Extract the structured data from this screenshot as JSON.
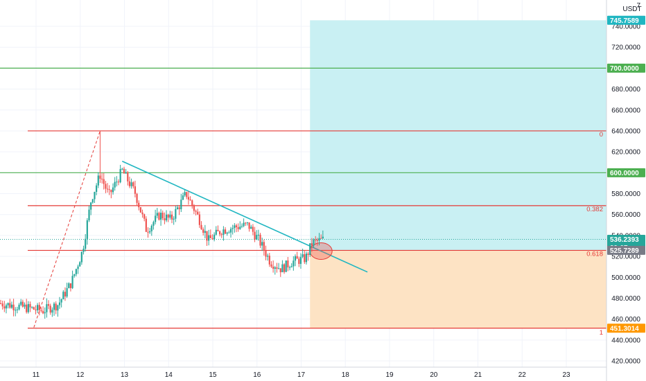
{
  "colors": {
    "up": "#26a69a",
    "down": "#ef5350",
    "red_line": "#e53935",
    "green_line": "#4caf50",
    "trendline": "#1fb6c1",
    "profit_zone": "#c9f0f3",
    "loss_zone": "#fde3c4",
    "grid": "#f0f3fa",
    "axis_text": "#131722",
    "current_price_badge": "#26a69a",
    "entry_badge": "#787b86",
    "loss_badge": "#ff9800",
    "green_badge": "#4caf50"
  },
  "price_axis": {
    "currency": "USDT",
    "ticks": [
      "7",
      "740.0000",
      "720.0000",
      "700.0000",
      "680.0000",
      "660.0000",
      "640.0000",
      "620.0000",
      "600.0000",
      "580.0000",
      "560.0000",
      "540.0000",
      "520.0000",
      "500.0000",
      "480.0000",
      "460.0000",
      "440.0000",
      "420.0000"
    ],
    "badges": {
      "target": "745.7589",
      "level_700": "700.0000",
      "level_600": "600.0000",
      "current_price": "536.2393",
      "countdown": "39:07",
      "entry": "525.7289",
      "stop": "451.3014"
    }
  },
  "time_axis": {
    "labels": [
      "11",
      "12",
      "13",
      "14",
      "15",
      "16",
      "17",
      "18",
      "19",
      "20",
      "21",
      "22",
      "23"
    ]
  },
  "fib_labels": {
    "level_0": "0",
    "level_0382": "0.382",
    "level_0618": "0.618",
    "level_1": "1"
  },
  "chart_data": {
    "type": "candlestick",
    "symbol_quote": "USDT",
    "ylim": [
      413,
      757
    ],
    "xlim_days": [
      10.2,
      24
    ],
    "horizontal_levels": [
      {
        "price": 700.0,
        "color": "green"
      },
      {
        "price": 600.0,
        "color": "green"
      },
      {
        "price": 640.0,
        "color": "red",
        "fib": "0"
      },
      {
        "price": 568.5,
        "color": "red",
        "fib": "0.382"
      },
      {
        "price": 525.7289,
        "color": "red",
        "fib": "0.618"
      },
      {
        "price": 451.3014,
        "color": "red",
        "fib": "1"
      }
    ],
    "trendline": {
      "start": {
        "day": 12.95,
        "price": 611
      },
      "end": {
        "day": 18.5,
        "price": 505
      }
    },
    "dashed_line": {
      "start": {
        "day": 10.95,
        "price": 452
      },
      "end": {
        "day": 12.45,
        "price": 640
      }
    },
    "position": {
      "start_day": 17.2,
      "entry": 525.7289,
      "target": 745.7589,
      "stop": 451.3014
    },
    "highlight_circle": {
      "day": 17.45,
      "price": 525
    },
    "candles_close_path": [
      {
        "day": 10.2,
        "price": 475
      },
      {
        "day": 10.9,
        "price": 470
      },
      {
        "day": 11.15,
        "price": 468
      },
      {
        "day": 11.5,
        "price": 474
      },
      {
        "day": 11.8,
        "price": 495
      },
      {
        "day": 12.05,
        "price": 525
      },
      {
        "day": 12.25,
        "price": 575
      },
      {
        "day": 12.45,
        "price": 598
      },
      {
        "day": 12.65,
        "price": 578
      },
      {
        "day": 12.95,
        "price": 602
      },
      {
        "day": 13.25,
        "price": 580
      },
      {
        "day": 13.5,
        "price": 545
      },
      {
        "day": 13.8,
        "price": 560
      },
      {
        "day": 14.05,
        "price": 555
      },
      {
        "day": 14.4,
        "price": 580
      },
      {
        "day": 14.7,
        "price": 555
      },
      {
        "day": 14.9,
        "price": 535
      },
      {
        "day": 15.2,
        "price": 545
      },
      {
        "day": 15.5,
        "price": 548
      },
      {
        "day": 15.8,
        "price": 550
      },
      {
        "day": 16.05,
        "price": 535
      },
      {
        "day": 16.3,
        "price": 515
      },
      {
        "day": 16.55,
        "price": 508
      },
      {
        "day": 16.8,
        "price": 515
      },
      {
        "day": 17.1,
        "price": 518
      },
      {
        "day": 17.25,
        "price": 533
      },
      {
        "day": 17.5,
        "price": 536
      }
    ]
  }
}
